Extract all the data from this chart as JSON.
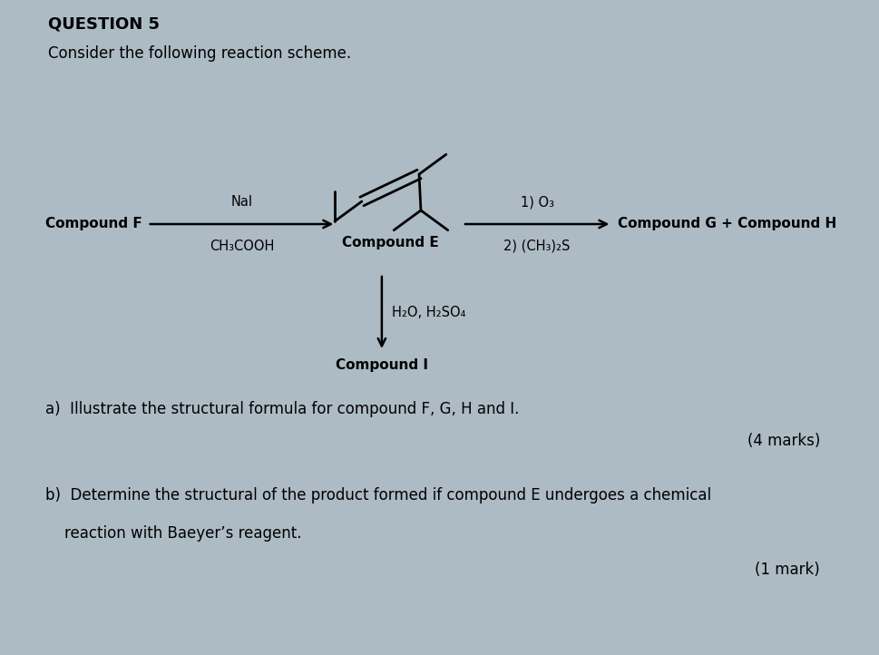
{
  "background_color": "#adbbc4",
  "title": "QUESTION 5",
  "subtitle": "Consider the following reaction scheme.",
  "question_a": "a)  Illustrate the structural formula for compound F, G, H and I.",
  "question_a_marks": "(4 marks)",
  "question_b_line1": "b)  Determine the structural of the product formed if compound E undergoes a chemical",
  "question_b_line2": "    reaction with Baeyer’s reagent.",
  "question_b_marks": "(1 mark)",
  "compound_E_label": "Compound E",
  "compound_I_label": "Compound I",
  "compound_F_label": "Compound F",
  "compound_GH_label": "Compound G + Compound H",
  "reagent_left_top": "NaI",
  "reagent_left_bot": "CH₃COOH",
  "reagent_right_top": "1) O₃",
  "reagent_right_bot": "2) (CH₃)₂S",
  "reagent_down": "H₂O, H₂SO₄"
}
